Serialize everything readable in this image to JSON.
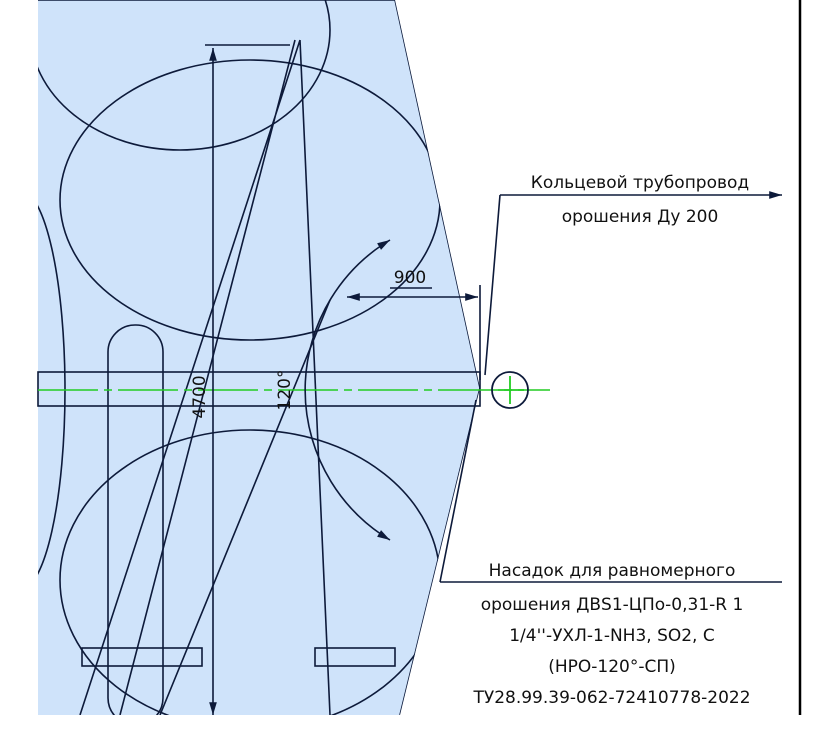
{
  "dimensions": {
    "height": "4700",
    "angle": "120°",
    "offset": "900"
  },
  "pipe_callout": {
    "lines": [
      "Кольцевой трубопровод",
      "орошения Ду 200"
    ]
  },
  "nozzle_callout": {
    "lines": [
      "Насадок для равномерного",
      "орошения ДВS1-ЦПо-0,31-R 1",
      "1/4''-УХЛ-1-NH3, SO2, С",
      "(НРО-120°-СП)",
      "ТУ28.99.39-062-72410778-2022"
    ]
  }
}
